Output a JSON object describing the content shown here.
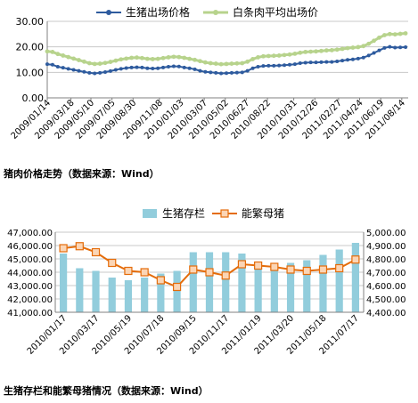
{
  "captions": {
    "chart1": "猪肉价格走势（数据来源：Wind）",
    "chart2": "生猪存栏和能繁母猪情况（数据来源：Wind）"
  },
  "colors": {
    "hog_price": "#2e5b9e",
    "pork_price": "#b7d38c",
    "hog_inventory": "#92cddc",
    "breeding_sows": "#e46c0a",
    "sow_marker_fill": "#fbd5b5"
  },
  "chart_data": [
    {
      "type": "line",
      "legend_position": "top",
      "grid": true,
      "xlim": [
        "2009/01/14",
        "2011/08/31"
      ],
      "ylim": [
        0,
        30
      ],
      "yticks": [
        "0.00",
        "10.00",
        "20.00",
        "30.00"
      ],
      "xtick_labels": [
        "2009/01/14",
        "2009/03/18",
        "2009/05/10",
        "2009/07/05",
        "2009/08/30",
        "2009/11/08",
        "2010/01/03",
        "2010/03/07",
        "2010/05/02",
        "2010/06/27",
        "2010/08/22",
        "2010/10/31",
        "2010/12/26",
        "2011/02/27",
        "2011/04/24",
        "2011/06/19",
        "2011/08/14"
      ],
      "series": [
        {
          "name": "生猪出场价格",
          "style": "line-with-markers",
          "points": [
            [
              "2009/01/14",
              13.2
            ],
            [
              "2009/01/28",
              13.0
            ],
            [
              "2009/02/11",
              12.2
            ],
            [
              "2009/02/25",
              11.8
            ],
            [
              "2009/03/11",
              11.4
            ],
            [
              "2009/03/25",
              11.0
            ],
            [
              "2009/04/08",
              10.6
            ],
            [
              "2009/04/22",
              10.2
            ],
            [
              "2009/05/06",
              9.8
            ],
            [
              "2009/05/20",
              9.6
            ],
            [
              "2009/06/03",
              9.8
            ],
            [
              "2009/06/17",
              10.1
            ],
            [
              "2009/07/01",
              10.5
            ],
            [
              "2009/07/15",
              11.0
            ],
            [
              "2009/07/29",
              11.4
            ],
            [
              "2009/08/12",
              11.7
            ],
            [
              "2009/08/26",
              11.9
            ],
            [
              "2009/09/09",
              12.0
            ],
            [
              "2009/09/23",
              11.9
            ],
            [
              "2009/10/07",
              11.6
            ],
            [
              "2009/10/21",
              11.5
            ],
            [
              "2009/11/04",
              11.6
            ],
            [
              "2009/11/18",
              11.9
            ],
            [
              "2009/12/02",
              12.2
            ],
            [
              "2009/12/16",
              12.4
            ],
            [
              "2009/12/30",
              12.3
            ],
            [
              "2010/01/13",
              11.9
            ],
            [
              "2010/01/27",
              11.6
            ],
            [
              "2010/02/10",
              11.2
            ],
            [
              "2010/02/24",
              10.6
            ],
            [
              "2010/03/10",
              10.2
            ],
            [
              "2010/03/24",
              10.0
            ],
            [
              "2010/04/07",
              9.8
            ],
            [
              "2010/04/21",
              9.6
            ],
            [
              "2010/05/05",
              9.7
            ],
            [
              "2010/05/19",
              9.8
            ],
            [
              "2010/06/02",
              9.9
            ],
            [
              "2010/06/16",
              10.0
            ],
            [
              "2010/06/30",
              10.6
            ],
            [
              "2010/07/14",
              11.6
            ],
            [
              "2010/07/28",
              12.2
            ],
            [
              "2010/08/11",
              12.5
            ],
            [
              "2010/08/25",
              12.6
            ],
            [
              "2010/09/08",
              12.6
            ],
            [
              "2010/09/22",
              12.7
            ],
            [
              "2010/10/06",
              12.8
            ],
            [
              "2010/10/20",
              13.0
            ],
            [
              "2010/11/03",
              13.2
            ],
            [
              "2010/11/17",
              13.6
            ],
            [
              "2010/12/01",
              13.8
            ],
            [
              "2010/12/15",
              13.9
            ],
            [
              "2010/12/29",
              13.9
            ],
            [
              "2011/01/12",
              14.0
            ],
            [
              "2011/01/26",
              14.1
            ],
            [
              "2011/02/09",
              14.1
            ],
            [
              "2011/02/23",
              14.3
            ],
            [
              "2011/03/09",
              14.6
            ],
            [
              "2011/03/23",
              14.9
            ],
            [
              "2011/04/06",
              15.1
            ],
            [
              "2011/04/20",
              15.4
            ],
            [
              "2011/05/04",
              15.8
            ],
            [
              "2011/05/18",
              16.6
            ],
            [
              "2011/06/01",
              17.6
            ],
            [
              "2011/06/15",
              18.6
            ],
            [
              "2011/06/29",
              19.6
            ],
            [
              "2011/07/13",
              20.0
            ],
            [
              "2011/07/27",
              19.7
            ],
            [
              "2011/08/10",
              19.8
            ],
            [
              "2011/08/24",
              19.9
            ]
          ]
        },
        {
          "name": "白条肉平均出场价",
          "style": "line-with-markers",
          "points": [
            [
              "2009/01/14",
              18.2
            ],
            [
              "2009/01/28",
              18.0
            ],
            [
              "2009/02/11",
              17.2
            ],
            [
              "2009/02/25",
              16.6
            ],
            [
              "2009/03/11",
              16.0
            ],
            [
              "2009/03/25",
              15.4
            ],
            [
              "2009/04/08",
              14.8
            ],
            [
              "2009/04/22",
              14.2
            ],
            [
              "2009/05/06",
              13.6
            ],
            [
              "2009/05/20",
              13.3
            ],
            [
              "2009/06/03",
              13.4
            ],
            [
              "2009/06/17",
              13.7
            ],
            [
              "2009/07/01",
              14.1
            ],
            [
              "2009/07/15",
              14.6
            ],
            [
              "2009/07/29",
              15.1
            ],
            [
              "2009/08/12",
              15.4
            ],
            [
              "2009/08/26",
              15.7
            ],
            [
              "2009/09/09",
              15.8
            ],
            [
              "2009/09/23",
              15.6
            ],
            [
              "2009/10/07",
              15.3
            ],
            [
              "2009/10/21",
              15.2
            ],
            [
              "2009/11/04",
              15.3
            ],
            [
              "2009/11/18",
              15.6
            ],
            [
              "2009/12/02",
              15.9
            ],
            [
              "2009/12/16",
              16.1
            ],
            [
              "2009/12/30",
              16.0
            ],
            [
              "2010/01/13",
              15.7
            ],
            [
              "2010/01/27",
              15.3
            ],
            [
              "2010/02/10",
              14.9
            ],
            [
              "2010/02/24",
              14.4
            ],
            [
              "2010/03/10",
              13.9
            ],
            [
              "2010/03/24",
              13.6
            ],
            [
              "2010/04/07",
              13.4
            ],
            [
              "2010/04/21",
              13.2
            ],
            [
              "2010/05/05",
              13.3
            ],
            [
              "2010/05/19",
              13.4
            ],
            [
              "2010/06/02",
              13.5
            ],
            [
              "2010/06/16",
              13.6
            ],
            [
              "2010/06/30",
              14.2
            ],
            [
              "2010/07/14",
              15.2
            ],
            [
              "2010/07/28",
              15.9
            ],
            [
              "2010/08/11",
              16.3
            ],
            [
              "2010/08/25",
              16.4
            ],
            [
              "2010/09/08",
              16.5
            ],
            [
              "2010/09/22",
              16.6
            ],
            [
              "2010/10/06",
              16.8
            ],
            [
              "2010/10/20",
              17.0
            ],
            [
              "2010/11/03",
              17.3
            ],
            [
              "2010/11/17",
              17.7
            ],
            [
              "2010/12/01",
              18.0
            ],
            [
              "2010/12/15",
              18.1
            ],
            [
              "2010/12/29",
              18.2
            ],
            [
              "2011/01/12",
              18.4
            ],
            [
              "2011/01/26",
              18.6
            ],
            [
              "2011/02/09",
              18.7
            ],
            [
              "2011/02/23",
              18.9
            ],
            [
              "2011/03/09",
              19.2
            ],
            [
              "2011/03/23",
              19.5
            ],
            [
              "2011/04/06",
              19.7
            ],
            [
              "2011/04/20",
              19.9
            ],
            [
              "2011/05/04",
              20.3
            ],
            [
              "2011/05/18",
              21.2
            ],
            [
              "2011/06/01",
              22.4
            ],
            [
              "2011/06/15",
              23.6
            ],
            [
              "2011/06/29",
              24.6
            ],
            [
              "2011/07/13",
              25.0
            ],
            [
              "2011/07/27",
              24.9
            ],
            [
              "2011/08/10",
              25.1
            ],
            [
              "2011/08/24",
              25.3
            ]
          ]
        }
      ]
    },
    {
      "type": "bar-line-combo",
      "legend_position": "top",
      "grid": true,
      "categories": [
        "2010/01/17",
        "2010/02/17",
        "2010/03/17",
        "2010/04/17",
        "2010/05/19",
        "2010/06/17",
        "2010/07/18",
        "2010/08/17",
        "2010/09/15",
        "2010/10/17",
        "2010/11/17",
        "2010/12/17",
        "2011/01/19",
        "2011/02/17",
        "2011/03/20",
        "2011/04/17",
        "2011/05/18",
        "2011/06/17",
        "2011/07/17"
      ],
      "xtick_labels": [
        "2010/01/17",
        "2010/03/17",
        "2010/05/19",
        "2010/07/18",
        "2010/09/15",
        "2010/11/17",
        "2011/01/19",
        "2011/03/20",
        "2011/05/18",
        "2011/07/17"
      ],
      "left_axis": {
        "ylim": [
          41000,
          47000
        ],
        "yticks": [
          "41,000.00",
          "42,000.00",
          "43,000.00",
          "44,000.00",
          "45,000.00",
          "46,000.00",
          "47,000.00"
        ]
      },
      "right_axis": {
        "ylim": [
          4400,
          5000
        ],
        "yticks": [
          "4,400.00",
          "4,500.00",
          "4,600.00",
          "4,700.00",
          "4,800.00",
          "4,900.00",
          "5,000.00"
        ]
      },
      "series": [
        {
          "name": "生猪存栏",
          "type": "bar",
          "axis": "left",
          "values": [
            45400,
            44300,
            44100,
            43600,
            43400,
            43600,
            43900,
            44100,
            45500,
            45500,
            45500,
            45400,
            44500,
            44200,
            44700,
            44900,
            45300,
            45700,
            46200
          ]
        },
        {
          "name": "能繁母猪",
          "type": "line",
          "axis": "right",
          "marker": "square",
          "values": [
            4880,
            4895,
            4850,
            4770,
            4710,
            4700,
            4640,
            4590,
            4720,
            4700,
            4675,
            4760,
            4750,
            4740,
            4720,
            4710,
            4720,
            4730,
            4795
          ]
        }
      ]
    }
  ]
}
